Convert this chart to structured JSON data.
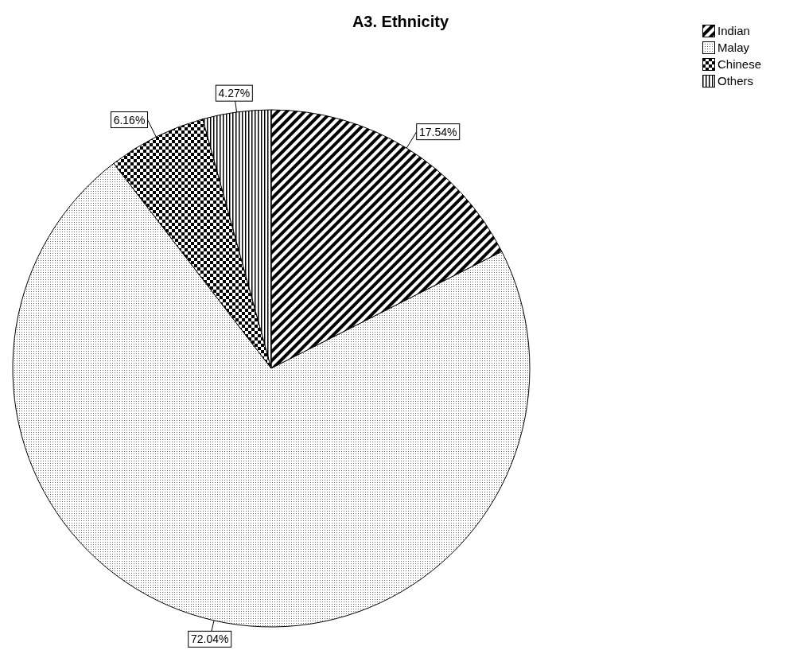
{
  "chart_data": {
    "type": "pie",
    "title": "A3. Ethnicity",
    "categories": [
      "Indian",
      "Malay",
      "Chinese",
      "Others"
    ],
    "values": [
      17.54,
      72.04,
      6.16,
      4.27
    ],
    "value_labels": [
      "17.54%",
      "72.04%",
      "6.16%",
      "4.27%"
    ],
    "colors": [
      "#000000",
      "#000000",
      "#000000",
      "#000000"
    ],
    "legend": "top right"
  }
}
